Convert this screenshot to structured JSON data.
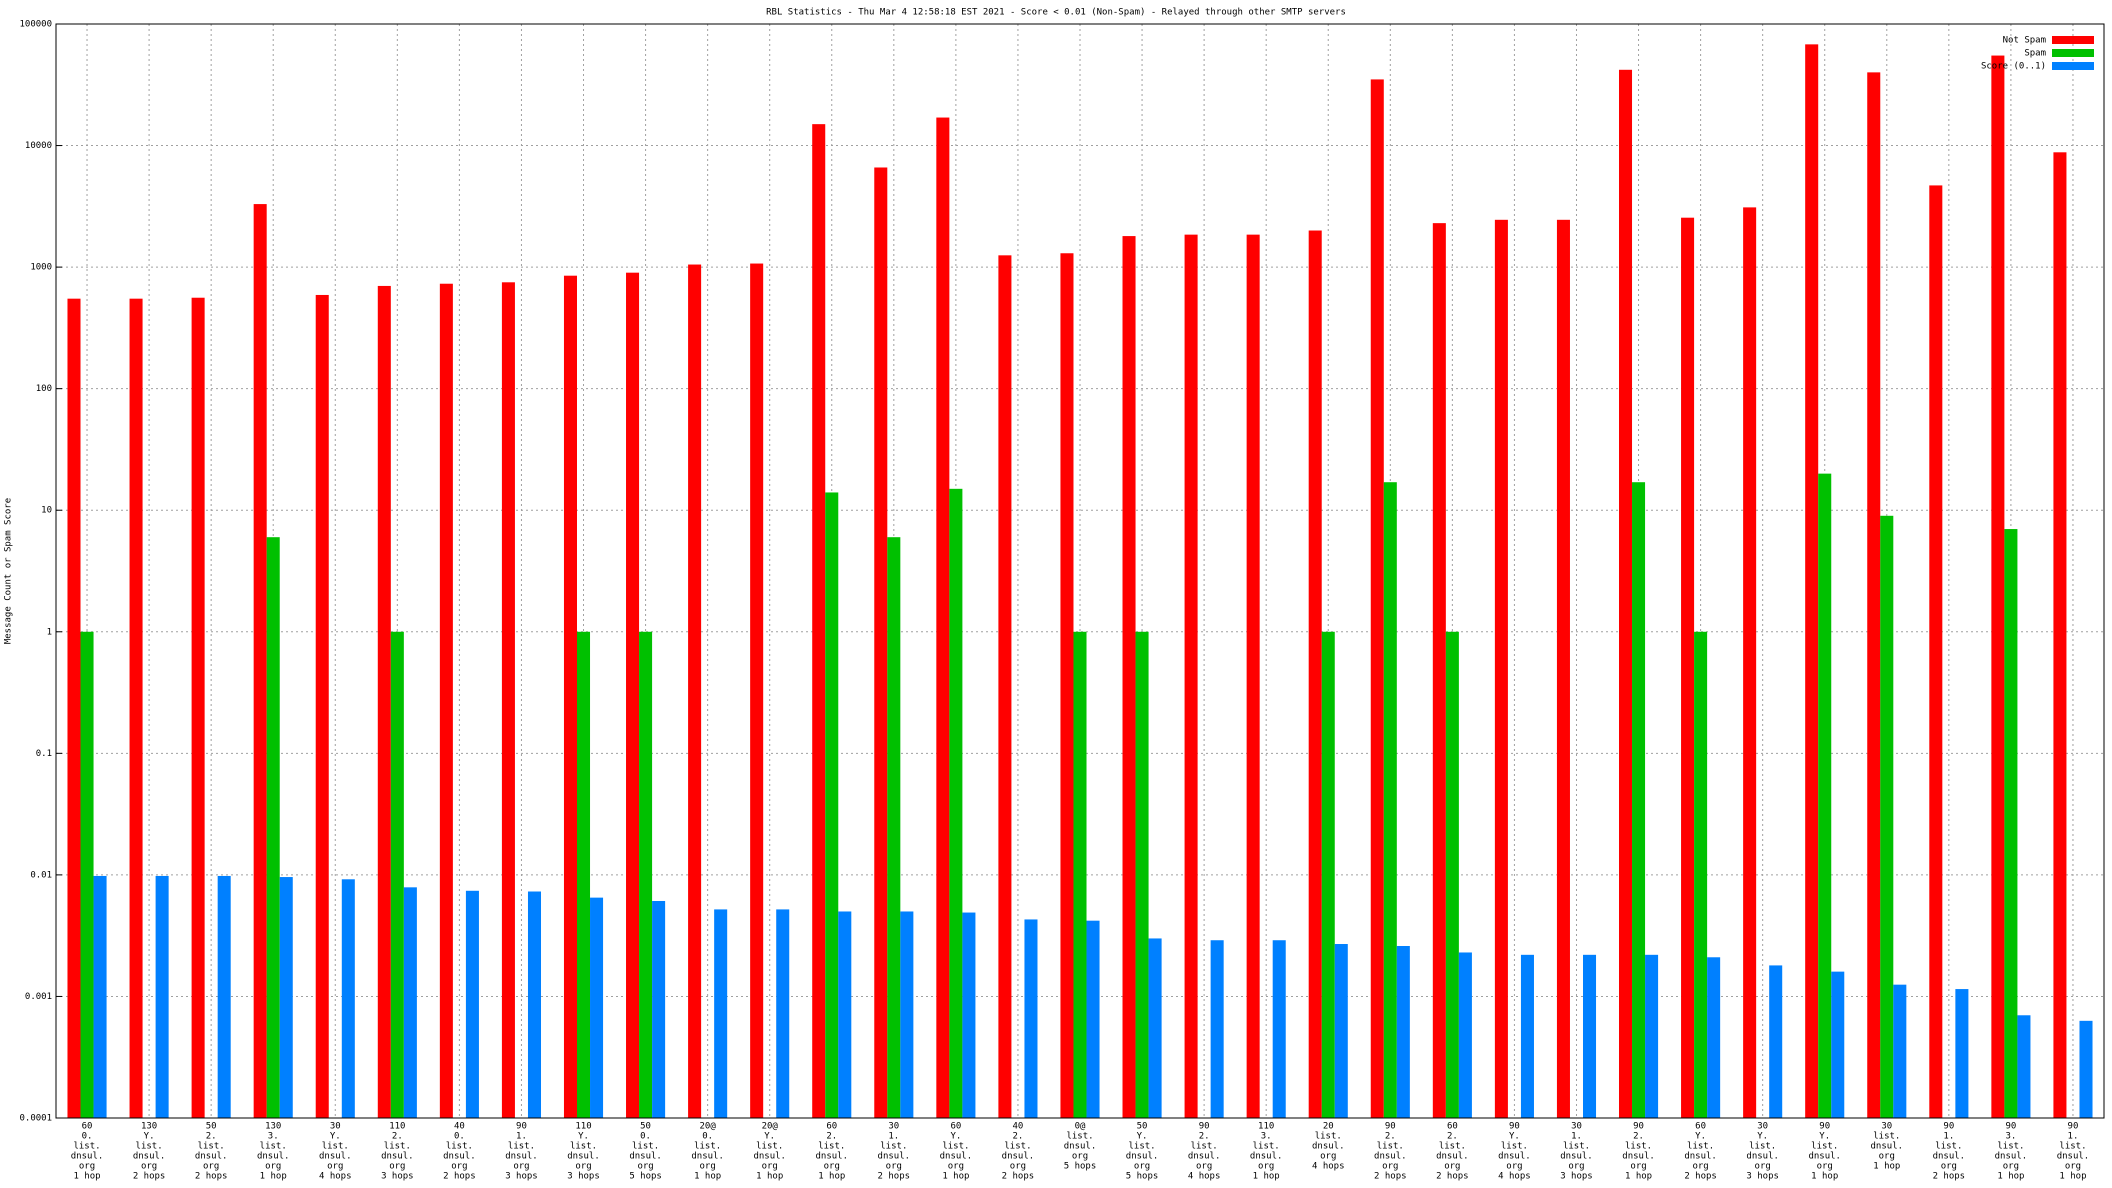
{
  "chart_data": {
    "type": "bar",
    "title": "RBL Statistics - Thu Mar  4 12:58:18 EST 2021 - Score < 0.01 (Non-Spam) - Relayed through other SMTP servers",
    "y_label": "Message Count or Spam Score",
    "log_scale": true,
    "grid": true,
    "legend": "top-right",
    "ylim": [
      0.0001,
      100000
    ],
    "yticks": [
      0.0001,
      0.001,
      0.01,
      0.1,
      1,
      10,
      100,
      1000,
      10000,
      100000
    ],
    "categories": [
      [
        "60",
        "0.",
        "list.",
        "dnsul.",
        "org",
        "1 hop"
      ],
      [
        "130",
        "Y.",
        "list.",
        "dnsul.",
        "org",
        "2 hops"
      ],
      [
        "50",
        "2.",
        "list.",
        "dnsul.",
        "org",
        "2 hops"
      ],
      [
        "130",
        "3.",
        "list.",
        "dnsul.",
        "org",
        "1 hop"
      ],
      [
        "30",
        "Y.",
        "list.",
        "dnsul.",
        "org",
        "4 hops"
      ],
      [
        "110",
        "2.",
        "list.",
        "dnsul.",
        "org",
        "3 hops"
      ],
      [
        "40",
        "0.",
        "list.",
        "dnsul.",
        "org",
        "2 hops"
      ],
      [
        "90",
        "1.",
        "list.",
        "dnsul.",
        "org",
        "3 hops"
      ],
      [
        "110",
        "Y.",
        "list.",
        "dnsul.",
        "org",
        "3 hops"
      ],
      [
        "50",
        "0.",
        "list.",
        "dnsul.",
        "org",
        "5 hops"
      ],
      [
        "20@",
        "0.",
        "list.",
        "dnsul.",
        "org",
        "1 hop"
      ],
      [
        "20@",
        "Y.",
        "list.",
        "dnsul.",
        "org",
        "1 hop"
      ],
      [
        "60",
        "2.",
        "list.",
        "dnsul.",
        "org",
        "1 hop"
      ],
      [
        "30",
        "1.",
        "list.",
        "dnsul.",
        "org",
        "2 hops"
      ],
      [
        "60",
        "Y.",
        "list.",
        "dnsul.",
        "org",
        "1 hop"
      ],
      [
        "40",
        "2.",
        "list.",
        "dnsul.",
        "org",
        "2 hops"
      ],
      [
        "0@",
        "list.",
        "dnsul.",
        "org",
        "5 hops"
      ],
      [
        "50",
        "Y.",
        "list.",
        "dnsul.",
        "org",
        "5 hops"
      ],
      [
        "90",
        "2.",
        "list.",
        "dnsul.",
        "org",
        "4 hops"
      ],
      [
        "110",
        "3.",
        "list.",
        "dnsul.",
        "org",
        "1 hop"
      ],
      [
        "20",
        "list.",
        "dnsul.",
        "org",
        "4 hops"
      ],
      [
        "90",
        "2.",
        "list.",
        "dnsul.",
        "org",
        "2 hops"
      ],
      [
        "60",
        "2.",
        "list.",
        "dnsul.",
        "org",
        "2 hops"
      ],
      [
        "90",
        "Y.",
        "list.",
        "dnsul.",
        "org",
        "4 hops"
      ],
      [
        "30",
        "1.",
        "list.",
        "dnsul.",
        "org",
        "3 hops"
      ],
      [
        "90",
        "2.",
        "list.",
        "dnsul.",
        "org",
        "1 hop"
      ],
      [
        "60",
        "Y.",
        "list.",
        "dnsul.",
        "org",
        "2 hops"
      ],
      [
        "30",
        "Y.",
        "list.",
        "dnsul.",
        "org",
        "3 hops"
      ],
      [
        "90",
        "Y.",
        "list.",
        "dnsul.",
        "org",
        "1 hop"
      ],
      [
        "30",
        "list.",
        "dnsul.",
        "org",
        "1 hop"
      ],
      [
        "90",
        "1.",
        "list.",
        "dnsul.",
        "org",
        "2 hops"
      ],
      [
        "90",
        "3.",
        "list.",
        "dnsul.",
        "org",
        "1 hop"
      ],
      [
        "90",
        "1.",
        "list.",
        "dnsul.",
        "org",
        "1 hop"
      ]
    ],
    "series": [
      {
        "name": "Not Spam",
        "color": "#ff0000",
        "values": [
          550,
          550,
          560,
          3300,
          590,
          700,
          730,
          750,
          850,
          900,
          1050,
          1070,
          15000,
          6600,
          17000,
          1250,
          1300,
          1800,
          1850,
          1850,
          2000,
          35000,
          2300,
          2450,
          2450,
          42000,
          2550,
          3100,
          68000,
          40000,
          4700,
          55000,
          8800
        ]
      },
      {
        "name": "Spam",
        "color": "#00c000",
        "values": [
          1,
          null,
          null,
          6,
          null,
          1,
          null,
          null,
          1,
          1,
          null,
          null,
          14,
          6,
          15,
          null,
          1,
          1,
          null,
          null,
          1,
          17,
          1,
          null,
          null,
          17,
          1,
          null,
          20,
          9,
          null,
          7,
          null
        ]
      },
      {
        "name": "Score (0..1)",
        "color": "#0080ff",
        "values": [
          0.0098,
          0.0098,
          0.0098,
          0.0096,
          0.0092,
          0.0079,
          0.0074,
          0.0073,
          0.0065,
          0.0061,
          0.0052,
          0.0052,
          0.005,
          0.005,
          0.0049,
          0.0043,
          0.0042,
          0.003,
          0.0029,
          0.0029,
          0.0027,
          0.0026,
          0.0023,
          0.0022,
          0.0022,
          0.0022,
          0.0021,
          0.0018,
          0.0016,
          0.00125,
          0.00115,
          0.0007,
          0.00063
        ]
      }
    ]
  }
}
